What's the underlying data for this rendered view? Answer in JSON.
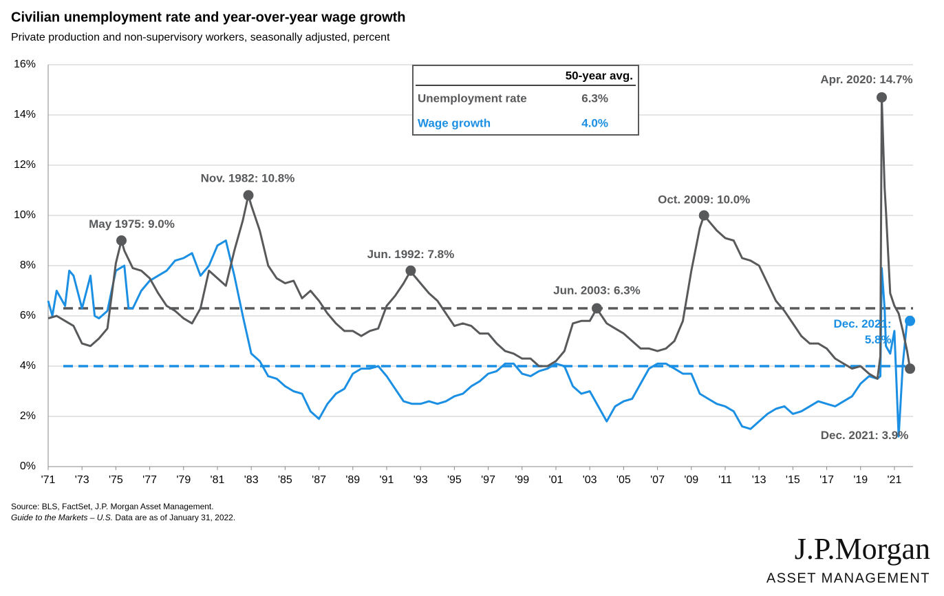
{
  "chart_data": {
    "type": "line",
    "title": "Civilian unemployment rate and year-over-year wage growth",
    "subtitle": "Private production and non-supervisory workers, seasonally adjusted, percent",
    "xlim": [
      1971,
      2022.1
    ],
    "xticks": [
      {
        "value": 1971,
        "label": "'71"
      },
      {
        "value": 1973,
        "label": "'73"
      },
      {
        "value": 1975,
        "label": "'75"
      },
      {
        "value": 1977,
        "label": "'77"
      },
      {
        "value": 1979,
        "label": "'79"
      },
      {
        "value": 1981,
        "label": "'81"
      },
      {
        "value": 1983,
        "label": "'83"
      },
      {
        "value": 1985,
        "label": "'85"
      },
      {
        "value": 1987,
        "label": "'87"
      },
      {
        "value": 1989,
        "label": "'89"
      },
      {
        "value": 1991,
        "label": "'91"
      },
      {
        "value": 1993,
        "label": "'93"
      },
      {
        "value": 1995,
        "label": "'95"
      },
      {
        "value": 1997,
        "label": "'97"
      },
      {
        "value": 1999,
        "label": "'99"
      },
      {
        "value": 2001,
        "label": "'01"
      },
      {
        "value": 2003,
        "label": "'03"
      },
      {
        "value": 2005,
        "label": "'05"
      },
      {
        "value": 2007,
        "label": "'07"
      },
      {
        "value": 2009,
        "label": "'09"
      },
      {
        "value": 2011,
        "label": "'11"
      },
      {
        "value": 2013,
        "label": "'13"
      },
      {
        "value": 2015,
        "label": "'15"
      },
      {
        "value": 2017,
        "label": "'17"
      },
      {
        "value": 2019,
        "label": "'19"
      },
      {
        "value": 2021,
        "label": "'21"
      }
    ],
    "ylim": [
      0,
      16
    ],
    "yticks": [
      {
        "value": 0,
        "label": "0%"
      },
      {
        "value": 2,
        "label": "2%"
      },
      {
        "value": 4,
        "label": "4%"
      },
      {
        "value": 6,
        "label": "6%"
      },
      {
        "value": 8,
        "label": "8%"
      },
      {
        "value": 10,
        "label": "10%"
      },
      {
        "value": 12,
        "label": "12%"
      },
      {
        "value": 14,
        "label": "14%"
      },
      {
        "value": 16,
        "label": "16%"
      }
    ],
    "grid": true,
    "series": [
      {
        "name": "Unemployment rate",
        "color": "#58595b",
        "x": [
          1971,
          1971.5,
          1972,
          1972.5,
          1973,
          1973.5,
          1974,
          1974.5,
          1975,
          1975.33,
          1975.5,
          1976,
          1976.5,
          1977,
          1977.5,
          1978,
          1978.5,
          1979,
          1979.5,
          1980,
          1980.5,
          1981,
          1981.5,
          1982,
          1982.5,
          1982.83,
          1983,
          1983.5,
          1984,
          1984.5,
          1985,
          1985.5,
          1986,
          1986.5,
          1987,
          1987.5,
          1988,
          1988.5,
          1989,
          1989.5,
          1990,
          1990.5,
          1991,
          1991.5,
          1992,
          1992.42,
          1992.5,
          1993,
          1993.5,
          1994,
          1994.5,
          1995,
          1995.5,
          1996,
          1996.5,
          1997,
          1997.5,
          1998,
          1998.5,
          1999,
          1999.5,
          2000,
          2000.5,
          2001,
          2001.5,
          2002,
          2002.5,
          2003,
          2003.42,
          2003.5,
          2004,
          2004.5,
          2005,
          2005.5,
          2006,
          2006.5,
          2007,
          2007.5,
          2008,
          2008.5,
          2009,
          2009.5,
          2009.75,
          2010,
          2010.5,
          2011,
          2011.5,
          2012,
          2012.5,
          2013,
          2013.5,
          2014,
          2014.5,
          2015,
          2015.5,
          2016,
          2016.5,
          2017,
          2017.5,
          2018,
          2018.5,
          2019,
          2019.5,
          2020,
          2020.17,
          2020.25,
          2020.42,
          2020.5,
          2020.75,
          2021,
          2021.25,
          2021.5,
          2021.75,
          2021.92
        ],
        "values": [
          5.9,
          6.0,
          5.8,
          5.6,
          4.9,
          4.8,
          5.1,
          5.5,
          8.1,
          9.0,
          8.6,
          7.9,
          7.8,
          7.5,
          6.9,
          6.4,
          6.2,
          5.9,
          5.7,
          6.3,
          7.8,
          7.5,
          7.2,
          8.6,
          9.8,
          10.8,
          10.4,
          9.4,
          8.0,
          7.5,
          7.3,
          7.4,
          6.7,
          7.0,
          6.6,
          6.1,
          5.7,
          5.4,
          5.4,
          5.2,
          5.4,
          5.5,
          6.4,
          6.8,
          7.3,
          7.8,
          7.7,
          7.3,
          6.9,
          6.6,
          6.1,
          5.6,
          5.7,
          5.6,
          5.3,
          5.3,
          4.9,
          4.6,
          4.5,
          4.3,
          4.3,
          4.0,
          4.0,
          4.2,
          4.6,
          5.7,
          5.8,
          5.8,
          6.3,
          6.2,
          5.7,
          5.5,
          5.3,
          5.0,
          4.7,
          4.7,
          4.6,
          4.7,
          5.0,
          5.8,
          7.8,
          9.5,
          10.0,
          9.8,
          9.4,
          9.1,
          9.0,
          8.3,
          8.2,
          8.0,
          7.3,
          6.6,
          6.2,
          5.7,
          5.2,
          4.9,
          4.9,
          4.7,
          4.3,
          4.1,
          3.9,
          4.0,
          3.7,
          3.5,
          4.4,
          14.7,
          11.1,
          10.2,
          6.9,
          6.4,
          6.1,
          5.4,
          4.6,
          3.9
        ]
      },
      {
        "name": "Wage growth",
        "color": "#1a8fe3",
        "x": [
          1971,
          1971.25,
          1971.5,
          1972,
          1972.25,
          1972.5,
          1973,
          1973.5,
          1973.75,
          1974,
          1974.5,
          1975,
          1975.5,
          1975.75,
          1976,
          1976.5,
          1977,
          1977.5,
          1978,
          1978.5,
          1979,
          1979.5,
          1980,
          1980.5,
          1981,
          1981.5,
          1982,
          1982.5,
          1983,
          1983.5,
          1984,
          1984.5,
          1985,
          1985.5,
          1986,
          1986.5,
          1987,
          1987.5,
          1988,
          1988.5,
          1989,
          1989.5,
          1990,
          1990.5,
          1991,
          1991.5,
          1992,
          1992.5,
          1993,
          1993.5,
          1994,
          1994.5,
          1995,
          1995.5,
          1996,
          1996.5,
          1997,
          1997.5,
          1998,
          1998.5,
          1999,
          1999.5,
          2000,
          2000.5,
          2001,
          2001.5,
          2002,
          2002.5,
          2003,
          2003.5,
          2004,
          2004.5,
          2005,
          2005.5,
          2006,
          2006.5,
          2007,
          2007.5,
          2008,
          2008.5,
          2009,
          2009.5,
          2010,
          2010.5,
          2011,
          2011.5,
          2012,
          2012.5,
          2013,
          2013.5,
          2014,
          2014.5,
          2015,
          2015.5,
          2016,
          2016.5,
          2017,
          2017.5,
          2018,
          2018.5,
          2019,
          2019.5,
          2020,
          2020.17,
          2020.25,
          2020.42,
          2020.5,
          2020.75,
          2021,
          2021.25,
          2021.5,
          2021.75,
          2021.92
        ],
        "values": [
          6.6,
          6.0,
          7.0,
          6.4,
          7.8,
          7.6,
          6.3,
          7.6,
          6.0,
          5.9,
          6.2,
          7.8,
          8.0,
          6.3,
          6.3,
          7.0,
          7.4,
          7.6,
          7.8,
          8.2,
          8.3,
          8.5,
          7.6,
          8.0,
          8.8,
          9.0,
          7.6,
          6.0,
          4.5,
          4.2,
          3.6,
          3.5,
          3.2,
          3.0,
          2.9,
          2.2,
          1.9,
          2.5,
          2.9,
          3.1,
          3.7,
          3.9,
          3.9,
          4.0,
          3.6,
          3.1,
          2.6,
          2.5,
          2.5,
          2.6,
          2.5,
          2.6,
          2.8,
          2.9,
          3.2,
          3.4,
          3.7,
          3.8,
          4.1,
          4.1,
          3.7,
          3.6,
          3.8,
          3.9,
          4.1,
          4.0,
          3.2,
          2.9,
          3.0,
          2.4,
          1.8,
          2.4,
          2.6,
          2.7,
          3.3,
          3.9,
          4.1,
          4.1,
          3.9,
          3.7,
          3.7,
          2.9,
          2.7,
          2.5,
          2.4,
          2.2,
          1.6,
          1.5,
          1.8,
          2.1,
          2.3,
          2.4,
          2.1,
          2.2,
          2.4,
          2.6,
          2.5,
          2.4,
          2.6,
          2.8,
          3.3,
          3.6,
          3.5,
          3.6,
          7.9,
          6.3,
          4.8,
          4.5,
          5.4,
          1.2,
          4.1,
          5.8,
          5.8
        ]
      }
    ],
    "averages": {
      "header": "50-year avg.",
      "rows": [
        {
          "name": "Unemployment rate",
          "value": 6.3,
          "value_label": "6.3%",
          "color": "#58595b"
        },
        {
          "name": "Wage growth",
          "value": 4.0,
          "value_label": "4.0%",
          "color": "#1a8fe3"
        }
      ]
    },
    "annotations": [
      {
        "text": "May 1975: 9.0%",
        "x": 1975.33,
        "y": 9.0,
        "series": 0
      },
      {
        "text": "Nov. 1982: 10.8%",
        "x": 1982.83,
        "y": 10.8,
        "series": 0
      },
      {
        "text": "Jun. 1992: 7.8%",
        "x": 1992.42,
        "y": 7.8,
        "series": 0
      },
      {
        "text": "Jun. 2003: 6.3%",
        "x": 2003.42,
        "y": 6.3,
        "series": 0
      },
      {
        "text": "Oct. 2009: 10.0%",
        "x": 2009.75,
        "y": 10.0,
        "series": 0
      },
      {
        "text": "Apr. 2020: 14.7%",
        "x": 2020.25,
        "y": 14.7,
        "series": 0
      },
      {
        "text": "Dec. 2021: 3.9%",
        "x": 2021.92,
        "y": 3.9,
        "series": 0
      },
      {
        "lines": [
          "Dec. 2021:",
          "5.8%"
        ],
        "x": 2021.92,
        "y": 5.8,
        "series": 1
      }
    ],
    "source": [
      "Source: BLS, FactSet, J.P. Morgan Asset Management.",
      "Guide to the Markets – U.S.",
      " Data are as of January 31, 2022."
    ],
    "logo": [
      "J.P.Morgan",
      "ASSET MANAGEMENT"
    ]
  }
}
